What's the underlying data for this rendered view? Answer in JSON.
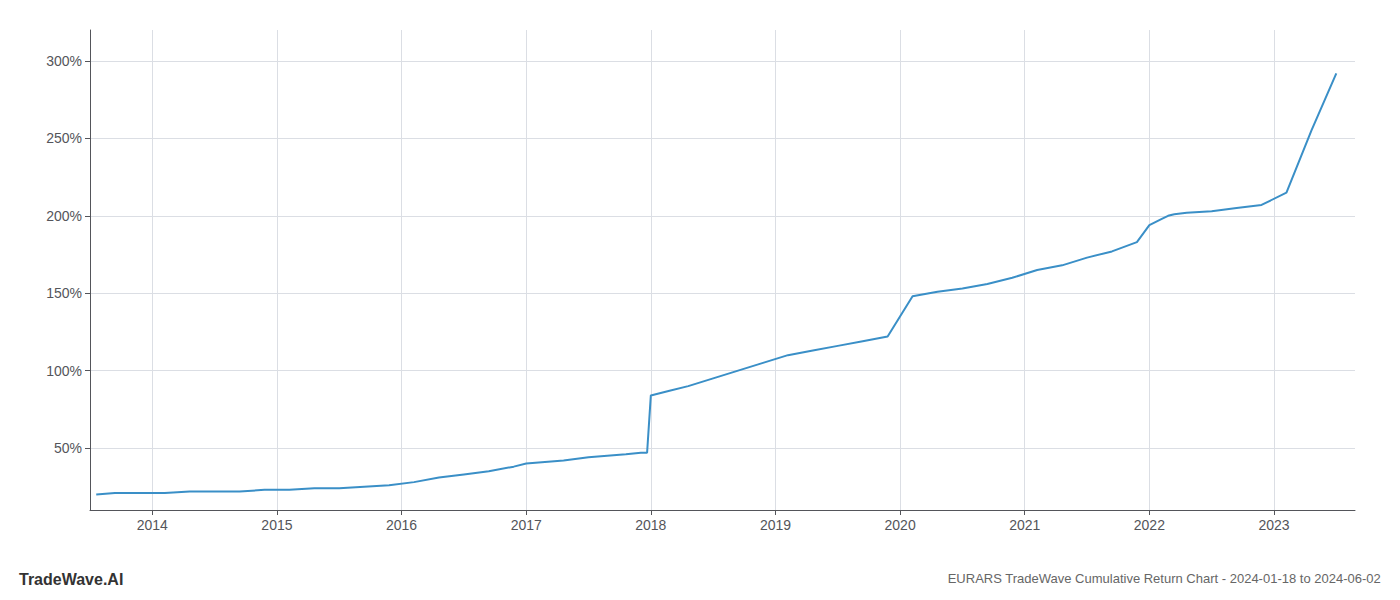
{
  "chart_data": {
    "type": "line",
    "title": "EURARS TradeWave Cumulative Return Chart - 2024-01-18 to 2024-06-02",
    "annotations": [
      "TradeWave.AI"
    ],
    "x": [
      2013.55,
      2013.7,
      2013.9,
      2014.1,
      2014.3,
      2014.5,
      2014.7,
      2014.9,
      2015.1,
      2015.3,
      2015.5,
      2015.7,
      2015.9,
      2016.1,
      2016.3,
      2016.5,
      2016.7,
      2016.9,
      2017.0,
      2017.15,
      2017.3,
      2017.5,
      2017.65,
      2017.8,
      2017.92,
      2017.97,
      2018.0,
      2018.15,
      2018.3,
      2018.5,
      2018.7,
      2018.9,
      2019.1,
      2019.3,
      2019.5,
      2019.7,
      2019.9,
      2020.1,
      2020.3,
      2020.5,
      2020.7,
      2020.9,
      2021.1,
      2021.3,
      2021.5,
      2021.7,
      2021.9,
      2022.0,
      2022.1,
      2022.15,
      2022.2,
      2022.3,
      2022.5,
      2022.7,
      2022.9,
      2023.1,
      2023.3,
      2023.5
    ],
    "values": [
      20,
      21,
      21,
      21,
      22,
      22,
      22,
      23,
      23,
      24,
      24,
      25,
      26,
      28,
      31,
      33,
      35,
      38,
      40,
      41,
      42,
      44,
      45,
      46,
      47,
      47,
      84,
      87,
      90,
      95,
      100,
      105,
      110,
      113,
      116,
      119,
      122,
      148,
      151,
      153,
      156,
      160,
      165,
      168,
      173,
      177,
      183,
      194,
      198,
      200,
      201,
      202,
      203,
      205,
      207,
      215,
      255,
      292
    ],
    "color": "#3a8fc7",
    "xlim": [
      2013.5,
      2023.65
    ],
    "xticks": [
      2014,
      2015,
      2016,
      2017,
      2018,
      2019,
      2020,
      2021,
      2022,
      2023
    ],
    "ylim": [
      10,
      320
    ],
    "yticks": [
      {
        "value": 50,
        "label": "50%"
      },
      {
        "value": 100,
        "label": "100%"
      },
      {
        "value": 150,
        "label": "150%"
      },
      {
        "value": 200,
        "label": "200%"
      },
      {
        "value": 250,
        "label": "250%"
      },
      {
        "value": 300,
        "label": "300%"
      }
    ],
    "grid": true
  }
}
